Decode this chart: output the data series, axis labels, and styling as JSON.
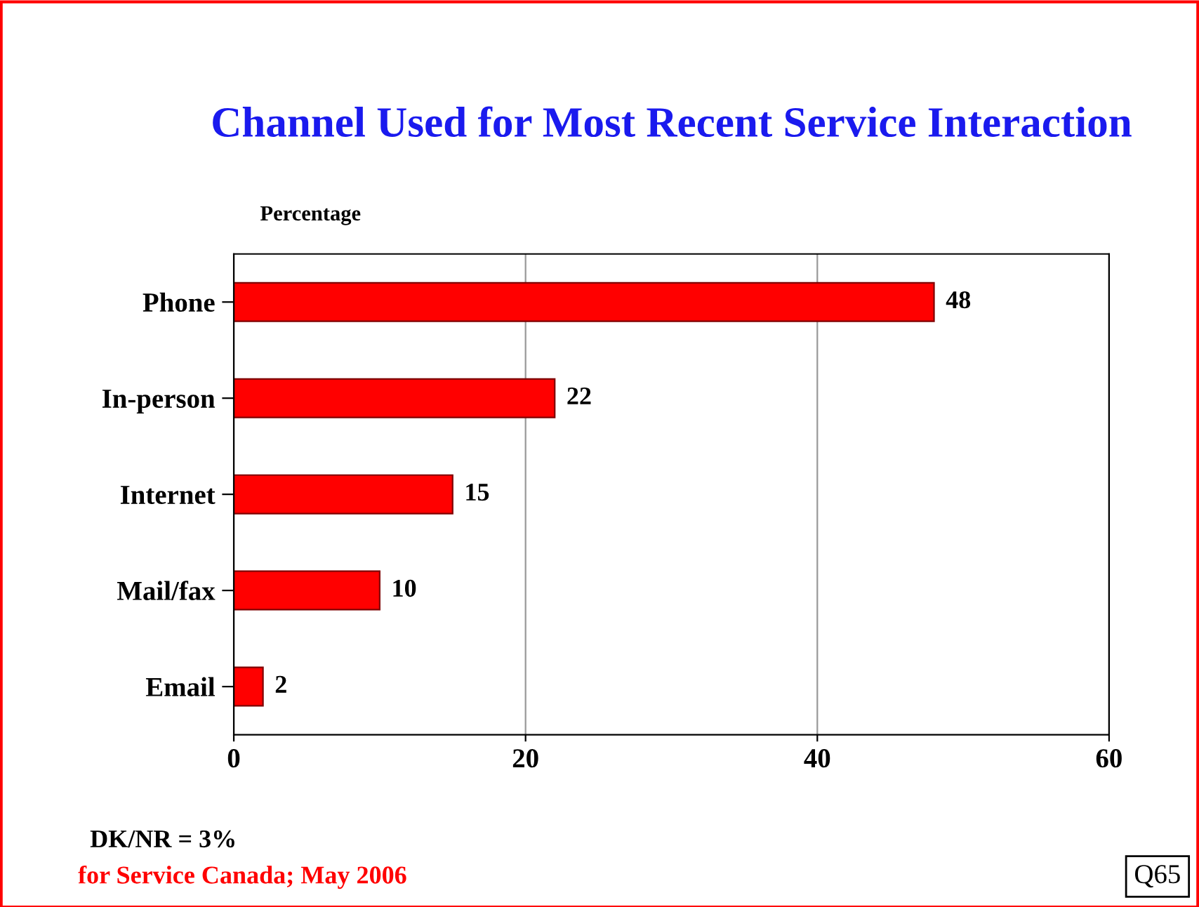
{
  "chart_data": {
    "type": "bar",
    "orientation": "horizontal",
    "title": "Channel Used for Most Recent Service Interaction",
    "xlabel": "Percentage",
    "categories": [
      "Phone",
      "In-person",
      "Internet",
      "Mail/fax",
      "Email"
    ],
    "values": [
      48,
      22,
      15,
      10,
      2
    ],
    "color": "#ff0000",
    "data_labels": true,
    "xlim": [
      0,
      60
    ],
    "xticks": [
      0,
      20,
      40,
      60
    ],
    "grid": "x",
    "annotations": [
      "DK/NR = 3%",
      "for Service Canada; May 2006",
      "Q65"
    ]
  }
}
